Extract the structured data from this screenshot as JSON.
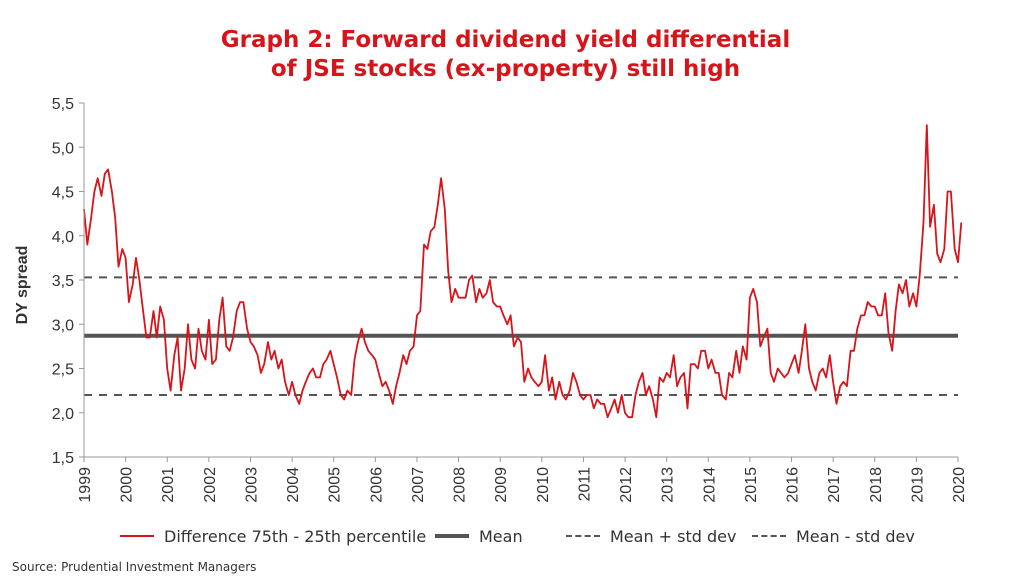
{
  "title_line1": "Graph 2: Forward dividend yield differential",
  "title_line2": "of JSE stocks (ex-property) still high",
  "source": "Source: Prudential Investment Managers",
  "colors": {
    "series": "#d7141a",
    "mean": "#555555",
    "band": "#555555",
    "title": "#d7141a"
  },
  "legend": [
    {
      "label": "Difference 75th - 25th percentile",
      "style": "solid-red"
    },
    {
      "label": "Mean",
      "style": "solid-thick-grey"
    },
    {
      "label": "Mean + std dev",
      "style": "dashed-grey"
    },
    {
      "label": "Mean - std dev",
      "style": "dashed-grey"
    }
  ],
  "chart_data": {
    "type": "line",
    "ylabel": "DY spread",
    "xlabel": "",
    "ylim": [
      1.5,
      5.5
    ],
    "yticks": [
      "1,5",
      "2,0",
      "2,5",
      "3,0",
      "3,5",
      "4,0",
      "4,5",
      "5,0",
      "5,5"
    ],
    "xlim": [
      1999,
      2020.1
    ],
    "xticks": [
      "1999",
      "2000",
      "2001",
      "2002",
      "2003",
      "2004",
      "2005",
      "2006",
      "2007",
      "2008",
      "2009",
      "2010",
      "2011",
      "2012",
      "2013",
      "2014",
      "2015",
      "2016",
      "2017",
      "2018",
      "2019",
      "2020"
    ],
    "grid": false,
    "legend_position": "bottom",
    "reference_lines": [
      {
        "name": "Mean",
        "value": 2.87
      },
      {
        "name": "Mean + std dev",
        "value": 3.53
      },
      {
        "name": "Mean - std dev",
        "value": 2.2
      }
    ],
    "series": [
      {
        "name": "Difference 75th - 25th percentile",
        "x": [
          1999.0,
          1999.08,
          1999.17,
          1999.25,
          1999.33,
          1999.42,
          1999.5,
          1999.58,
          1999.67,
          1999.75,
          1999.83,
          1999.92,
          2000.0,
          2000.08,
          2000.17,
          2000.25,
          2000.33,
          2000.42,
          2000.5,
          2000.58,
          2000.67,
          2000.75,
          2000.83,
          2000.92,
          2001.0,
          2001.08,
          2001.17,
          2001.25,
          2001.33,
          2001.42,
          2001.5,
          2001.58,
          2001.67,
          2001.75,
          2001.83,
          2001.92,
          2002.0,
          2002.08,
          2002.17,
          2002.25,
          2002.33,
          2002.42,
          2002.5,
          2002.58,
          2002.67,
          2002.75,
          2002.83,
          2002.92,
          2003.0,
          2003.08,
          2003.17,
          2003.25,
          2003.33,
          2003.42,
          2003.5,
          2003.58,
          2003.67,
          2003.75,
          2003.83,
          2003.92,
          2004.0,
          2004.08,
          2004.17,
          2004.25,
          2004.33,
          2004.42,
          2004.5,
          2004.58,
          2004.67,
          2004.75,
          2004.83,
          2004.92,
          2005.0,
          2005.08,
          2005.17,
          2005.25,
          2005.33,
          2005.42,
          2005.5,
          2005.58,
          2005.67,
          2005.75,
          2005.83,
          2005.92,
          2006.0,
          2006.08,
          2006.17,
          2006.25,
          2006.33,
          2006.42,
          2006.5,
          2006.58,
          2006.67,
          2006.75,
          2006.83,
          2006.92,
          2007.0,
          2007.08,
          2007.17,
          2007.25,
          2007.33,
          2007.42,
          2007.5,
          2007.58,
          2007.67,
          2007.75,
          2007.83,
          2007.92,
          2008.0,
          2008.08,
          2008.17,
          2008.25,
          2008.33,
          2008.42,
          2008.5,
          2008.58,
          2008.67,
          2008.75,
          2008.83,
          2008.92,
          2009.0,
          2009.08,
          2009.17,
          2009.25,
          2009.33,
          2009.42,
          2009.5,
          2009.58,
          2009.67,
          2009.75,
          2009.83,
          2009.92,
          2010.0,
          2010.08,
          2010.17,
          2010.25,
          2010.33,
          2010.42,
          2010.5,
          2010.58,
          2010.67,
          2010.75,
          2010.83,
          2010.92,
          2011.0,
          2011.08,
          2011.17,
          2011.25,
          2011.33,
          2011.42,
          2011.5,
          2011.58,
          2011.67,
          2011.75,
          2011.83,
          2011.92,
          2012.0,
          2012.08,
          2012.17,
          2012.25,
          2012.33,
          2012.42,
          2012.5,
          2012.58,
          2012.67,
          2012.75,
          2012.83,
          2012.92,
          2013.0,
          2013.08,
          2013.17,
          2013.25,
          2013.33,
          2013.42,
          2013.5,
          2013.58,
          2013.67,
          2013.75,
          2013.83,
          2013.92,
          2014.0,
          2014.08,
          2014.17,
          2014.25,
          2014.33,
          2014.42,
          2014.5,
          2014.58,
          2014.67,
          2014.75,
          2014.83,
          2014.92,
          2015.0,
          2015.08,
          2015.17,
          2015.25,
          2015.33,
          2015.42,
          2015.5,
          2015.58,
          2015.67,
          2015.75,
          2015.83,
          2015.92,
          2016.0,
          2016.08,
          2016.17,
          2016.25,
          2016.33,
          2016.42,
          2016.5,
          2016.58,
          2016.67,
          2016.75,
          2016.83,
          2016.92,
          2017.0,
          2017.08,
          2017.17,
          2017.25,
          2017.33,
          2017.42,
          2017.5,
          2017.58,
          2017.67,
          2017.75,
          2017.83,
          2017.92,
          2018.0,
          2018.08,
          2018.17,
          2018.25,
          2018.33,
          2018.42,
          2018.5,
          2018.58,
          2018.67,
          2018.75,
          2018.83,
          2018.92,
          2019.0,
          2019.08,
          2019.17,
          2019.25,
          2019.33,
          2019.42,
          2019.5,
          2019.58,
          2019.67,
          2019.75,
          2019.83,
          2019.92,
          2020.0,
          2020.08
        ],
        "y": [
          4.3,
          3.9,
          4.2,
          4.5,
          4.65,
          4.45,
          4.7,
          4.75,
          4.5,
          4.2,
          3.65,
          3.85,
          3.75,
          3.25,
          3.45,
          3.75,
          3.5,
          3.15,
          2.85,
          2.85,
          3.15,
          2.85,
          3.2,
          3.05,
          2.5,
          2.25,
          2.65,
          2.85,
          2.25,
          2.5,
          3.0,
          2.6,
          2.5,
          2.95,
          2.7,
          2.6,
          3.05,
          2.55,
          2.6,
          3.05,
          3.3,
          2.75,
          2.7,
          2.85,
          3.15,
          3.25,
          3.25,
          2.95,
          2.8,
          2.75,
          2.65,
          2.45,
          2.55,
          2.8,
          2.6,
          2.7,
          2.5,
          2.6,
          2.35,
          2.2,
          2.35,
          2.2,
          2.1,
          2.25,
          2.35,
          2.45,
          2.5,
          2.4,
          2.4,
          2.55,
          2.6,
          2.7,
          2.55,
          2.4,
          2.2,
          2.15,
          2.25,
          2.2,
          2.6,
          2.8,
          2.95,
          2.8,
          2.7,
          2.65,
          2.6,
          2.45,
          2.3,
          2.35,
          2.25,
          2.1,
          2.3,
          2.45,
          2.65,
          2.55,
          2.7,
          2.75,
          3.1,
          3.15,
          3.9,
          3.85,
          4.05,
          4.1,
          4.35,
          4.65,
          4.3,
          3.6,
          3.25,
          3.4,
          3.3,
          3.3,
          3.3,
          3.5,
          3.55,
          3.25,
          3.4,
          3.3,
          3.35,
          3.5,
          3.25,
          3.2,
          3.2,
          3.1,
          3.0,
          3.1,
          2.75,
          2.85,
          2.8,
          2.35,
          2.5,
          2.4,
          2.35,
          2.3,
          2.35,
          2.65,
          2.25,
          2.4,
          2.15,
          2.35,
          2.2,
          2.15,
          2.25,
          2.45,
          2.35,
          2.2,
          2.15,
          2.2,
          2.2,
          2.05,
          2.15,
          2.1,
          2.1,
          1.95,
          2.05,
          2.15,
          2.0,
          2.2,
          2.0,
          1.95,
          1.95,
          2.2,
          2.35,
          2.45,
          2.2,
          2.3,
          2.15,
          1.95,
          2.4,
          2.35,
          2.45,
          2.4,
          2.65,
          2.3,
          2.4,
          2.45,
          2.05,
          2.55,
          2.55,
          2.5,
          2.7,
          2.7,
          2.5,
          2.6,
          2.45,
          2.45,
          2.2,
          2.15,
          2.45,
          2.4,
          2.7,
          2.45,
          2.75,
          2.6,
          3.3,
          3.4,
          3.25,
          2.75,
          2.85,
          2.95,
          2.45,
          2.35,
          2.5,
          2.45,
          2.4,
          2.45,
          2.55,
          2.65,
          2.45,
          2.7,
          3.0,
          2.5,
          2.35,
          2.25,
          2.45,
          2.5,
          2.4,
          2.65,
          2.35,
          2.1,
          2.3,
          2.35,
          2.3,
          2.7,
          2.7,
          2.95,
          3.1,
          3.1,
          3.25,
          3.2,
          3.2,
          3.1,
          3.1,
          3.35,
          2.9,
          2.7,
          3.15,
          3.45,
          3.35,
          3.5,
          3.2,
          3.35,
          3.2,
          3.55,
          4.15,
          5.25,
          4.1,
          4.35,
          3.8,
          3.7,
          3.85,
          4.5,
          4.5,
          3.85,
          3.7,
          4.15
        ]
      }
    ]
  }
}
